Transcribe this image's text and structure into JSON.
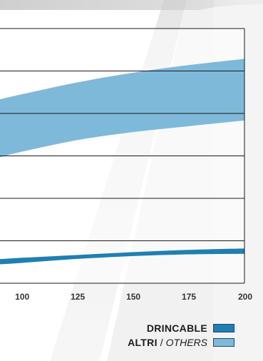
{
  "chart_data": {
    "type": "area",
    "title": "",
    "xlabel": "",
    "ylabel": "",
    "x_ticks": [
      100,
      125,
      150,
      175,
      200
    ],
    "xlim": [
      90,
      200
    ],
    "grid": true,
    "legend_placement": "bottom-right",
    "series": [
      {
        "name": "DRINCABLE",
        "color": "#1f7fb2",
        "x": [
          90,
          100,
          125,
          150,
          175,
          200
        ],
        "upper": [
          0.85,
          0.9,
          1.0,
          1.1,
          1.18,
          1.23
        ],
        "lower": [
          0.67,
          0.72,
          0.86,
          0.96,
          1.02,
          1.04
        ]
      },
      {
        "name_primary": "ALTRI",
        "name_secondary": "OTHERS",
        "color": "#7fb9d9",
        "x": [
          90,
          100,
          125,
          150,
          175,
          200
        ],
        "upper": [
          6.5,
          6.68,
          7.1,
          7.44,
          7.71,
          7.93
        ],
        "lower": [
          4.45,
          4.65,
          5.06,
          5.34,
          5.55,
          5.75
        ]
      }
    ]
  },
  "legend": {
    "drincable_label": "DRINCABLE",
    "altri_label": "ALTRI",
    "separator": "/",
    "others_label": "OTHERS"
  }
}
